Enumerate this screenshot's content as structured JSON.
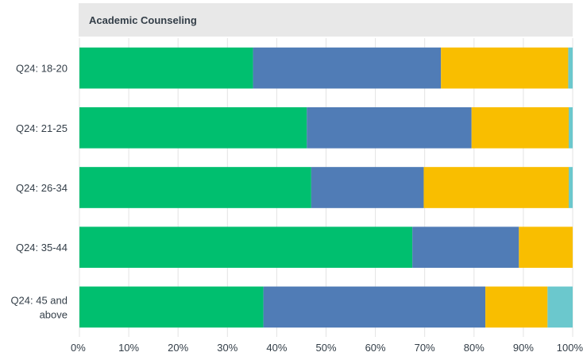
{
  "chart_data": {
    "type": "bar",
    "orientation": "horizontal",
    "stacked": true,
    "title": "Academic Counseling",
    "categories": [
      [
        "Q24: 18-20"
      ],
      [
        "Q24: 21-25"
      ],
      [
        "Q24: 26-34"
      ],
      [
        "Q24: 35-44"
      ],
      [
        "Q24: 45 and",
        "above"
      ]
    ],
    "series": [
      {
        "values": [
          35.2,
          46.1,
          47.0,
          67.5,
          37.3
        ]
      },
      {
        "values": [
          38.1,
          33.4,
          22.8,
          21.6,
          45.0
        ]
      },
      {
        "values": [
          25.8,
          19.7,
          29.4,
          10.9,
          12.6
        ]
      },
      {
        "values": [
          0.9,
          0.8,
          0.8,
          0.0,
          5.1
        ]
      }
    ],
    "colors": [
      "#00bf6f",
      "#507cb6",
      "#f9be00",
      "#6bc8cd"
    ],
    "xlim": [
      0,
      100
    ],
    "xticks": [
      "0%",
      "10%",
      "20%",
      "30%",
      "40%",
      "50%",
      "60%",
      "70%",
      "80%",
      "90%",
      "100%"
    ],
    "grid": true
  }
}
